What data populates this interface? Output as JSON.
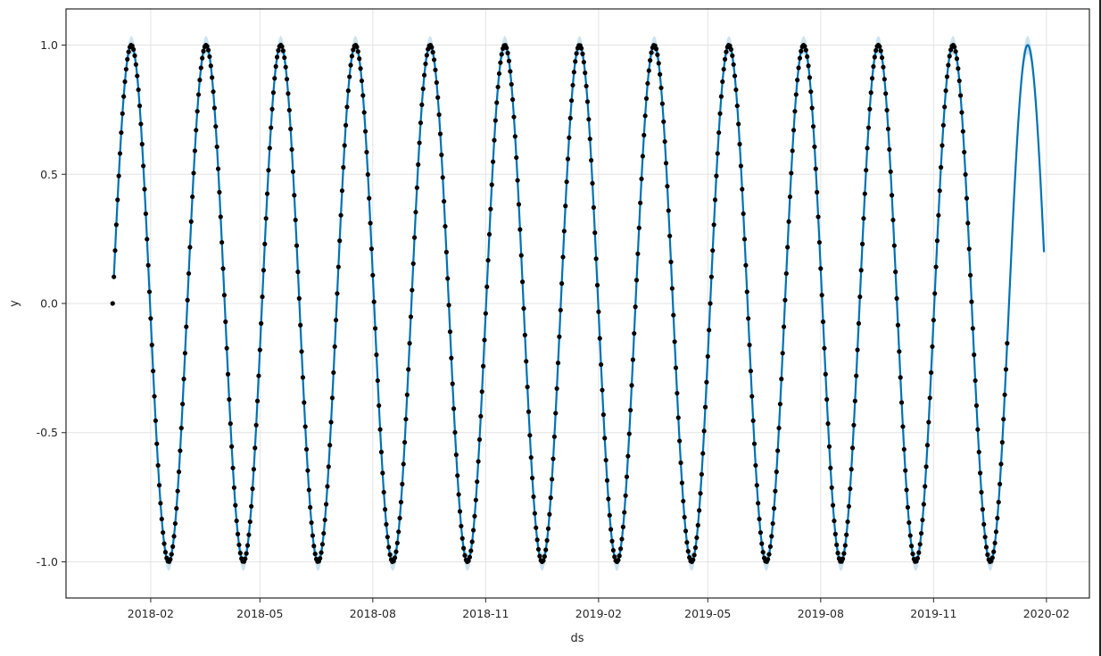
{
  "chart_data": {
    "type": "scatter+line",
    "title": "",
    "xlabel": "ds",
    "ylabel": "y",
    "x_ticks": [
      "2018-02",
      "2018-05",
      "2018-08",
      "2018-11",
      "2019-02",
      "2019-05",
      "2019-08",
      "2019-11",
      "2020-02"
    ],
    "x_tick_dates": [
      "2018-02-01",
      "2018-05-01",
      "2018-08-01",
      "2018-11-01",
      "2019-02-01",
      "2019-05-01",
      "2019-08-01",
      "2019-11-01",
      "2020-02-01"
    ],
    "y_ticks": [
      "1.0",
      "0.5",
      "0.0",
      "-0.5",
      "-1.0"
    ],
    "y_tick_values": [
      1.0,
      0.5,
      0.0,
      -0.5,
      -1.0
    ],
    "xlim": [
      "2017-11-24",
      "2020-03-07"
    ],
    "ylim": [
      -1.14,
      1.14
    ],
    "grid": true,
    "observed": {
      "start": "2018-01-01",
      "end": "2019-12-31",
      "frequency": "daily",
      "shape": "sine",
      "amplitude": 1.0,
      "cycles_per_year": 6,
      "value_at_start": 0.0
    },
    "forecast": {
      "start": "2018-01-02",
      "end": "2020-01-30",
      "shape": "sine",
      "amplitude": 1.0,
      "cycles_per_year": 6,
      "uncertainty": 0.035
    },
    "colors": {
      "points": "#000000",
      "forecast_line": "#0072B2",
      "uncertainty_band": "#0072B2",
      "grid": "#e3e3e3",
      "axes": "#262626"
    }
  }
}
